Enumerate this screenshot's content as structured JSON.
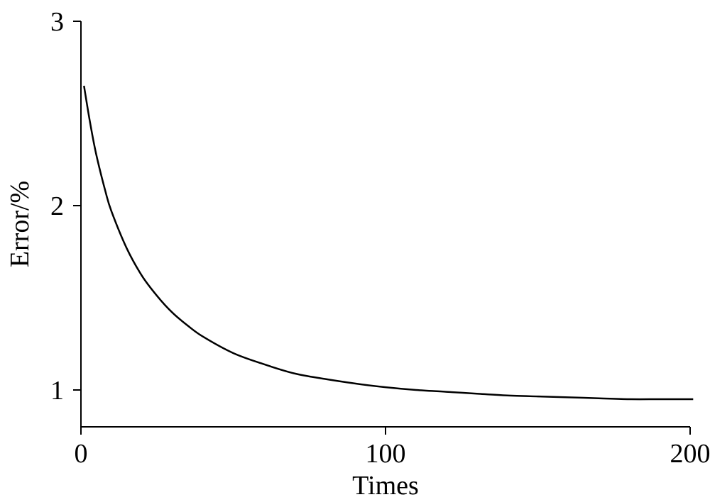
{
  "chart_data": {
    "type": "line",
    "xlabel": "Times",
    "ylabel": "Error/%",
    "xlim": [
      0,
      200
    ],
    "ylim": [
      0.8,
      3
    ],
    "xticks": [
      0,
      100,
      200
    ],
    "yticks": [
      1,
      2,
      3
    ],
    "grid": false,
    "legend": "none",
    "line_color": "#000000",
    "series": [
      {
        "x": [
          1,
          3,
          5,
          8,
          10,
          15,
          20,
          25,
          30,
          35,
          40,
          50,
          60,
          70,
          80,
          90,
          100,
          110,
          120,
          130,
          140,
          150,
          160,
          170,
          180,
          190,
          201
        ],
        "values": [
          2.65,
          2.45,
          2.28,
          2.08,
          1.97,
          1.77,
          1.62,
          1.51,
          1.42,
          1.35,
          1.29,
          1.2,
          1.14,
          1.09,
          1.06,
          1.035,
          1.015,
          1.0,
          0.99,
          0.98,
          0.97,
          0.965,
          0.96,
          0.955,
          0.95,
          0.95,
          0.95
        ]
      }
    ]
  }
}
